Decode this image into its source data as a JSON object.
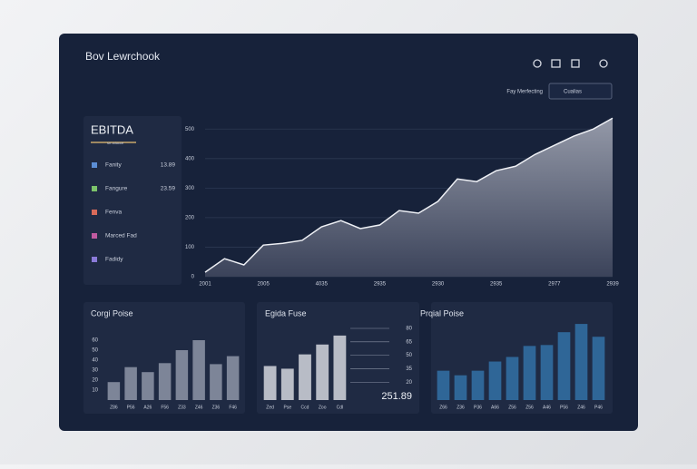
{
  "header": {
    "title": "Bov Lewrchook",
    "filter_label": "Fay Merfecting",
    "dropdown": "Cualias"
  },
  "sidebar": {
    "title": "EBITDA",
    "subtitle": "sn oducce",
    "items": [
      {
        "name": "Fanity",
        "value": 13.89
      },
      {
        "name": "Fangure",
        "value": 23.59
      },
      {
        "name": "Fenva"
      },
      {
        "name": "Marced Fad"
      },
      {
        "name": "Fadidy"
      }
    ]
  },
  "chart_data": [
    {
      "type": "area",
      "color": "#eef0f5",
      "values": [
        15,
        61,
        40,
        107,
        113,
        123,
        169,
        190,
        163,
        175,
        224,
        215,
        255,
        331,
        322,
        359,
        374,
        414,
        445,
        476,
        500,
        537
      ],
      "xlim": [
        0,
        21
      ],
      "xticks": [
        {
          "value": 0,
          "label": "2001"
        },
        {
          "value": 3,
          "label": "2005"
        },
        {
          "value": 6,
          "label": "4035"
        },
        {
          "value": 9,
          "label": "2935"
        },
        {
          "value": 12,
          "label": "2930"
        },
        {
          "value": 15,
          "label": "2935"
        },
        {
          "value": 18,
          "label": "2977"
        },
        {
          "value": 21,
          "label": "2939"
        }
      ],
      "ylim": [
        0,
        550
      ],
      "yticks": [
        0,
        100,
        200,
        300,
        400,
        500
      ],
      "grid": true
    },
    {
      "type": "bar",
      "title": "Corgi Poise",
      "color": "#7d8598",
      "categories": [
        "Z86",
        "P56",
        "A26",
        "F56",
        "Z33",
        "Z46",
        "Z36",
        "F46"
      ],
      "values": [
        18,
        33,
        28,
        37,
        50,
        60,
        36,
        44
      ],
      "ylim": [
        0,
        60
      ],
      "yticks": [
        10,
        20,
        30,
        40,
        50,
        60
      ]
    },
    {
      "type": "bar",
      "title": "Egida Fuse",
      "color": "#b8bcc6",
      "annotation": "251.89",
      "categories": [
        "Zed",
        "Pse",
        "Ccd",
        "Zoo",
        "Cdl"
      ],
      "values": [
        38,
        35,
        51,
        62,
        72
      ],
      "ylim": [
        0,
        80
      ],
      "yticks": [
        20,
        35,
        50,
        65,
        80
      ]
    },
    {
      "type": "bar",
      "title": "Prqial Poise",
      "color": "#2f6697",
      "categories": [
        "Z66",
        "Z36",
        "P36",
        "A66",
        "Z56",
        "Z56",
        "A46",
        "P56",
        "Z46",
        "P46"
      ],
      "values": [
        32,
        27,
        32,
        42,
        47,
        59,
        60,
        74,
        83,
        69
      ],
      "ylim": [
        0,
        90
      ]
    }
  ]
}
